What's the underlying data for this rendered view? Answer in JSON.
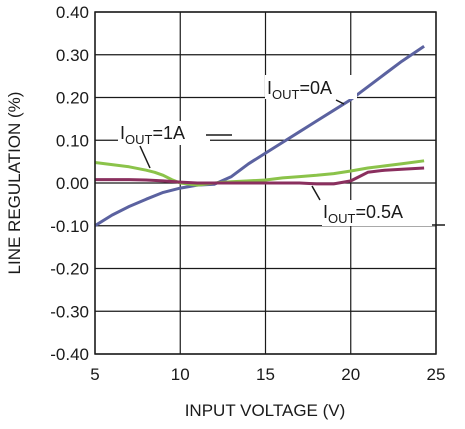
{
  "chart_data": {
    "type": "line",
    "xlabel": "INPUT VOLTAGE (V)",
    "ylabel": "LINE REGULATION  (%)",
    "xlim": [
      5,
      25
    ],
    "ylim": [
      -0.4,
      0.4
    ],
    "x_ticks": [
      5,
      10,
      15,
      20,
      25
    ],
    "x_tick_labels": [
      "5",
      "10",
      "15",
      "20",
      "25"
    ],
    "y_ticks": [
      -0.4,
      -0.3,
      -0.2,
      -0.1,
      0,
      0.1,
      0.2,
      0.3,
      0.4
    ],
    "y_tick_labels": [
      "-0.40",
      "-0.30",
      "-0.20",
      "-0.10",
      "0.00",
      "0.10",
      "0.20",
      "0.30",
      "0.40"
    ],
    "grid": true,
    "series": [
      {
        "id": "iout-0a",
        "label_main": "I",
        "label_sub": "OUT",
        "label_rest": "=0A",
        "color": "#5b62a0",
        "x": [
          5,
          6,
          7,
          8,
          9,
          10,
          11,
          12,
          13,
          14,
          15,
          16,
          17,
          18,
          19,
          20,
          21,
          22,
          23,
          24.3
        ],
        "y": [
          -0.1,
          -0.075,
          -0.055,
          -0.038,
          -0.022,
          -0.012,
          -0.005,
          -0.003,
          0.015,
          0.045,
          0.07,
          0.095,
          0.12,
          0.145,
          0.17,
          0.195,
          0.225,
          0.255,
          0.285,
          0.32
        ]
      },
      {
        "id": "iout-1a",
        "label_main": "I",
        "label_sub": "OUT",
        "label_rest": "=1A",
        "color": "#8bc34a",
        "x": [
          5,
          6,
          7,
          8,
          8.5,
          9,
          9.5,
          10,
          11,
          12,
          13,
          14,
          15,
          16,
          17,
          18,
          19,
          20,
          21,
          22,
          23,
          24.3
        ],
        "y": [
          0.048,
          0.043,
          0.038,
          0.03,
          0.025,
          0.018,
          0.008,
          0.0,
          -0.005,
          0.0,
          0.003,
          0.005,
          0.007,
          0.012,
          0.015,
          0.018,
          0.022,
          0.028,
          0.035,
          0.04,
          0.045,
          0.052
        ]
      },
      {
        "id": "iout-0-5a",
        "label_main": "I",
        "label_sub": "OUT",
        "label_rest": "=0.5A",
        "color": "#8a2f5e",
        "x": [
          5,
          6,
          7,
          8,
          9,
          10,
          11,
          12,
          13,
          14,
          15,
          16,
          17,
          18,
          19,
          20,
          20.5,
          21,
          22,
          23,
          24.3
        ],
        "y": [
          0.008,
          0.008,
          0.008,
          0.007,
          0.005,
          0.002,
          0.0,
          0.0,
          0.0,
          0.0,
          0.0,
          0.0,
          0.0,
          -0.002,
          -0.002,
          0.005,
          0.015,
          0.025,
          0.03,
          0.032,
          0.035
        ]
      }
    ]
  }
}
